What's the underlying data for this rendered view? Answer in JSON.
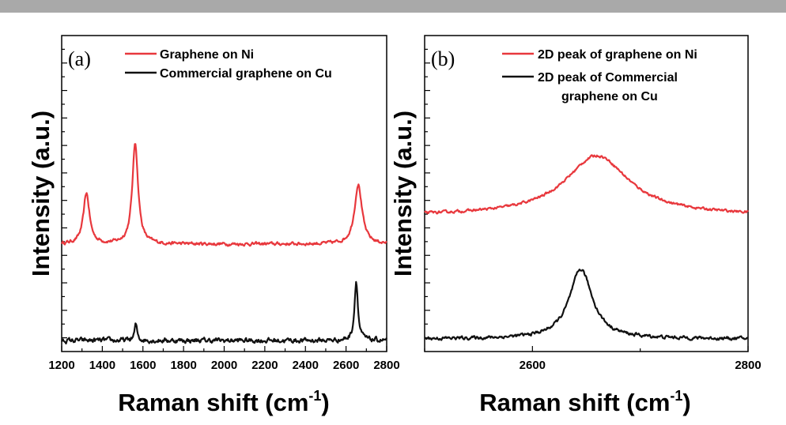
{
  "chart_data": [
    {
      "type": "line",
      "panel_label": "(a)",
      "xlabel": "Raman shift (cm",
      "xlabel_sup": "-1",
      "xlabel_tail": ")",
      "ylabel": "Intensity (a.u.)",
      "xlim": [
        1200,
        2800
      ],
      "ylim": [
        0,
        1
      ],
      "x_ticks": [
        1200,
        1400,
        1600,
        1800,
        2000,
        2200,
        2400,
        2600,
        2800
      ],
      "x_tick_labels": [
        "1200",
        "1400",
        "1600",
        "1800",
        "2000",
        "2200",
        "2400",
        "2600",
        "2800"
      ],
      "series": [
        {
          "name": "Graphene on Ni",
          "color": "#e8383d",
          "baseline": 0.34,
          "noise": 0.004,
          "peaks": [
            {
              "center": 1322,
              "height": 0.16,
              "width": 18
            },
            {
              "center": 1562,
              "height": 0.32,
              "width": 17
            },
            {
              "center": 2660,
              "height": 0.19,
              "width": 22
            }
          ]
        },
        {
          "name": "Commercial graphene on Cu",
          "color": "#111111",
          "baseline": 0.035,
          "noise": 0.006,
          "peaks": [
            {
              "center": 1565,
              "height": 0.05,
              "width": 8
            },
            {
              "center": 2650,
              "height": 0.19,
              "width": 10
            }
          ]
        }
      ]
    },
    {
      "type": "line",
      "panel_label": "(b)",
      "xlabel": "Raman shift (cm",
      "xlabel_sup": "-1",
      "xlabel_tail": ")",
      "ylabel": "Intensity (a.u.)",
      "xlim": [
        2500,
        2800
      ],
      "ylim": [
        0,
        1
      ],
      "x_ticks": [
        2600,
        2800
      ],
      "x_tick_labels": [
        "2600",
        "2800"
      ],
      "series": [
        {
          "name": "2D peak of graphene on Ni",
          "color": "#e8383d",
          "baseline": 0.43,
          "noise": 0.003,
          "peaks": [
            {
              "center": 2660,
              "height": 0.19,
              "width": 36
            }
          ]
        },
        {
          "name_line1": "2D peak of Commercial",
          "name_line2": "graphene on Cu",
          "color": "#111111",
          "baseline": 0.04,
          "noise": 0.004,
          "peaks": [
            {
              "center": 2645,
              "height": 0.22,
              "width": 13
            }
          ]
        }
      ]
    }
  ]
}
